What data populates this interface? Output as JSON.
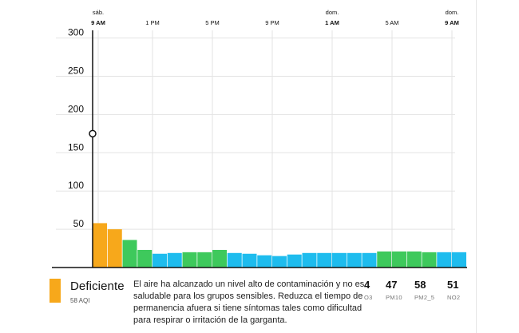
{
  "chart_data": {
    "type": "bar",
    "ylim": [
      0,
      310
    ],
    "y_ticks": [
      50,
      100,
      150,
      200,
      250,
      300
    ],
    "grid": true,
    "x_labels": [
      {
        "top": "sáb.",
        "bottom": "9 AM",
        "index": 0,
        "bold": true
      },
      {
        "top": "",
        "bottom": "1 PM",
        "index": 4,
        "bold": false
      },
      {
        "top": "",
        "bottom": "5 PM",
        "index": 8,
        "bold": false
      },
      {
        "top": "",
        "bottom": "9 PM",
        "index": 12,
        "bold": false
      },
      {
        "top": "dom.",
        "bottom": "1 AM",
        "index": 16,
        "bold": true
      },
      {
        "top": "",
        "bottom": "5 AM",
        "index": 20,
        "bold": false
      },
      {
        "top": "dom.",
        "bottom": "9 AM",
        "index": 24,
        "bold": true
      }
    ],
    "values": [
      58,
      50,
      36,
      23,
      18,
      19,
      20,
      20,
      23,
      19,
      18,
      16,
      15,
      17,
      19,
      19,
      19,
      19,
      19,
      21,
      21,
      21,
      20,
      20,
      20
    ],
    "colors": [
      "#f7a81b",
      "#f7a81b",
      "#3ec95c",
      "#3ec95c",
      "#1ebcee",
      "#1ebcee",
      "#3ec95c",
      "#3ec95c",
      "#3ec95c",
      "#1ebcee",
      "#1ebcee",
      "#1ebcee",
      "#1ebcee",
      "#1ebcee",
      "#1ebcee",
      "#1ebcee",
      "#1ebcee",
      "#1ebcee",
      "#1ebcee",
      "#3ec95c",
      "#3ec95c",
      "#3ec95c",
      "#3ec95c",
      "#1ebcee",
      "#1ebcee"
    ],
    "marker_value": 175
  },
  "current": {
    "level": "Deficiente",
    "aqi_text": "58 AQI",
    "color": "#f7a81b",
    "description": "El aire ha alcanzado un nivel alto de contaminación y no es saludable para los grupos sensibles. Reduzca el tiempo de permanencia afuera si tiene síntomas tales como dificultad para respirar o irritación de la garganta."
  },
  "pollutants": [
    {
      "value": "4",
      "name": "O3"
    },
    {
      "value": "47",
      "name": "PM10"
    },
    {
      "value": "58",
      "name": "PM2_5"
    },
    {
      "value": "51",
      "name": "NO2"
    }
  ]
}
